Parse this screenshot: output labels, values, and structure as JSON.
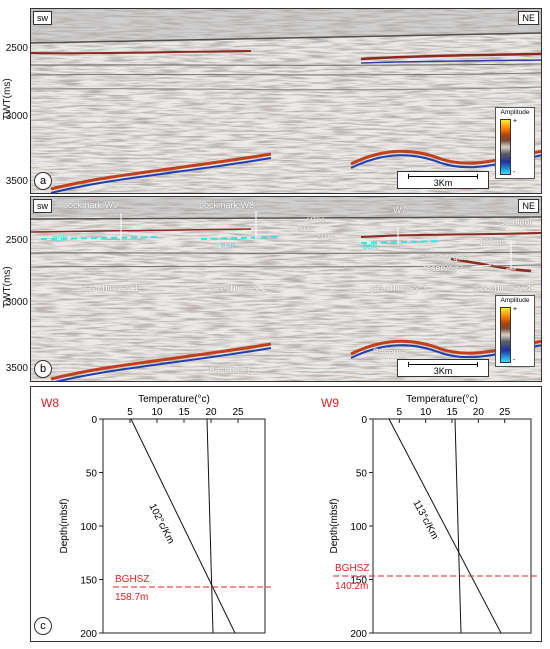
{
  "panel_a": {
    "letter": "a",
    "corner_left": "sw",
    "corner_right": "NE",
    "y_label": "TWT(ms)",
    "y_ticks": [
      "2500",
      "3000",
      "3500"
    ],
    "amplitude_title": "Amplitude",
    "amp_plus": "+",
    "amp_minus": "-",
    "scale": "3Km"
  },
  "panel_b": {
    "letter": "b",
    "corner_left": "sw",
    "corner_right": "NE",
    "y_label": "TWT(ms)",
    "y_ticks": [
      "2500",
      "3000",
      "3500"
    ],
    "amplitude_title": "Amplitude",
    "amp_plus": "+",
    "amp_minus": "-",
    "scale": "3Km",
    "labels": {
      "pockmark_w9": "pockmark W9",
      "pockmark_w8": "pockmark W8",
      "w7": "W7",
      "seafloor": "Seafloor",
      "mtd3": "MTD3",
      "mtd2": "MTD2",
      "mtd1": "MTD1",
      "bsr1": "BSR",
      "bsr2": "BSR",
      "bsr3": "BSR",
      "ms195": "195ms",
      "shallow_gas_1": "Shallow gas",
      "shallow_gas_2": "reservoir?",
      "chimney1": "gas chimney 1",
      "chimney2": "gas chimney 2",
      "chimney3": "gas chimney 3",
      "chimney4": "gas chimney 4",
      "basement1": "Basement",
      "basement2": "Basement"
    }
  },
  "panel_c": {
    "letter": "c",
    "y_label": "Depth(mbsf)",
    "x_label": "Temperature(°c)",
    "y_ticks": [
      "0",
      "50",
      "100",
      "150",
      "200"
    ],
    "x_ticks": [
      "5",
      "10",
      "15",
      "20",
      "25"
    ],
    "wells": [
      {
        "name": "W8",
        "gradient": "102°c/Km",
        "bghsz_label": "BGHSZ",
        "bghsz_depth": "158.7m"
      },
      {
        "name": "W9",
        "gradient": "113°c/Km",
        "bghsz_label": "BGHSZ",
        "bghsz_depth": "140.2m"
      }
    ]
  },
  "colors": {
    "red": "#e02020",
    "cyan": "#33e5e5"
  }
}
